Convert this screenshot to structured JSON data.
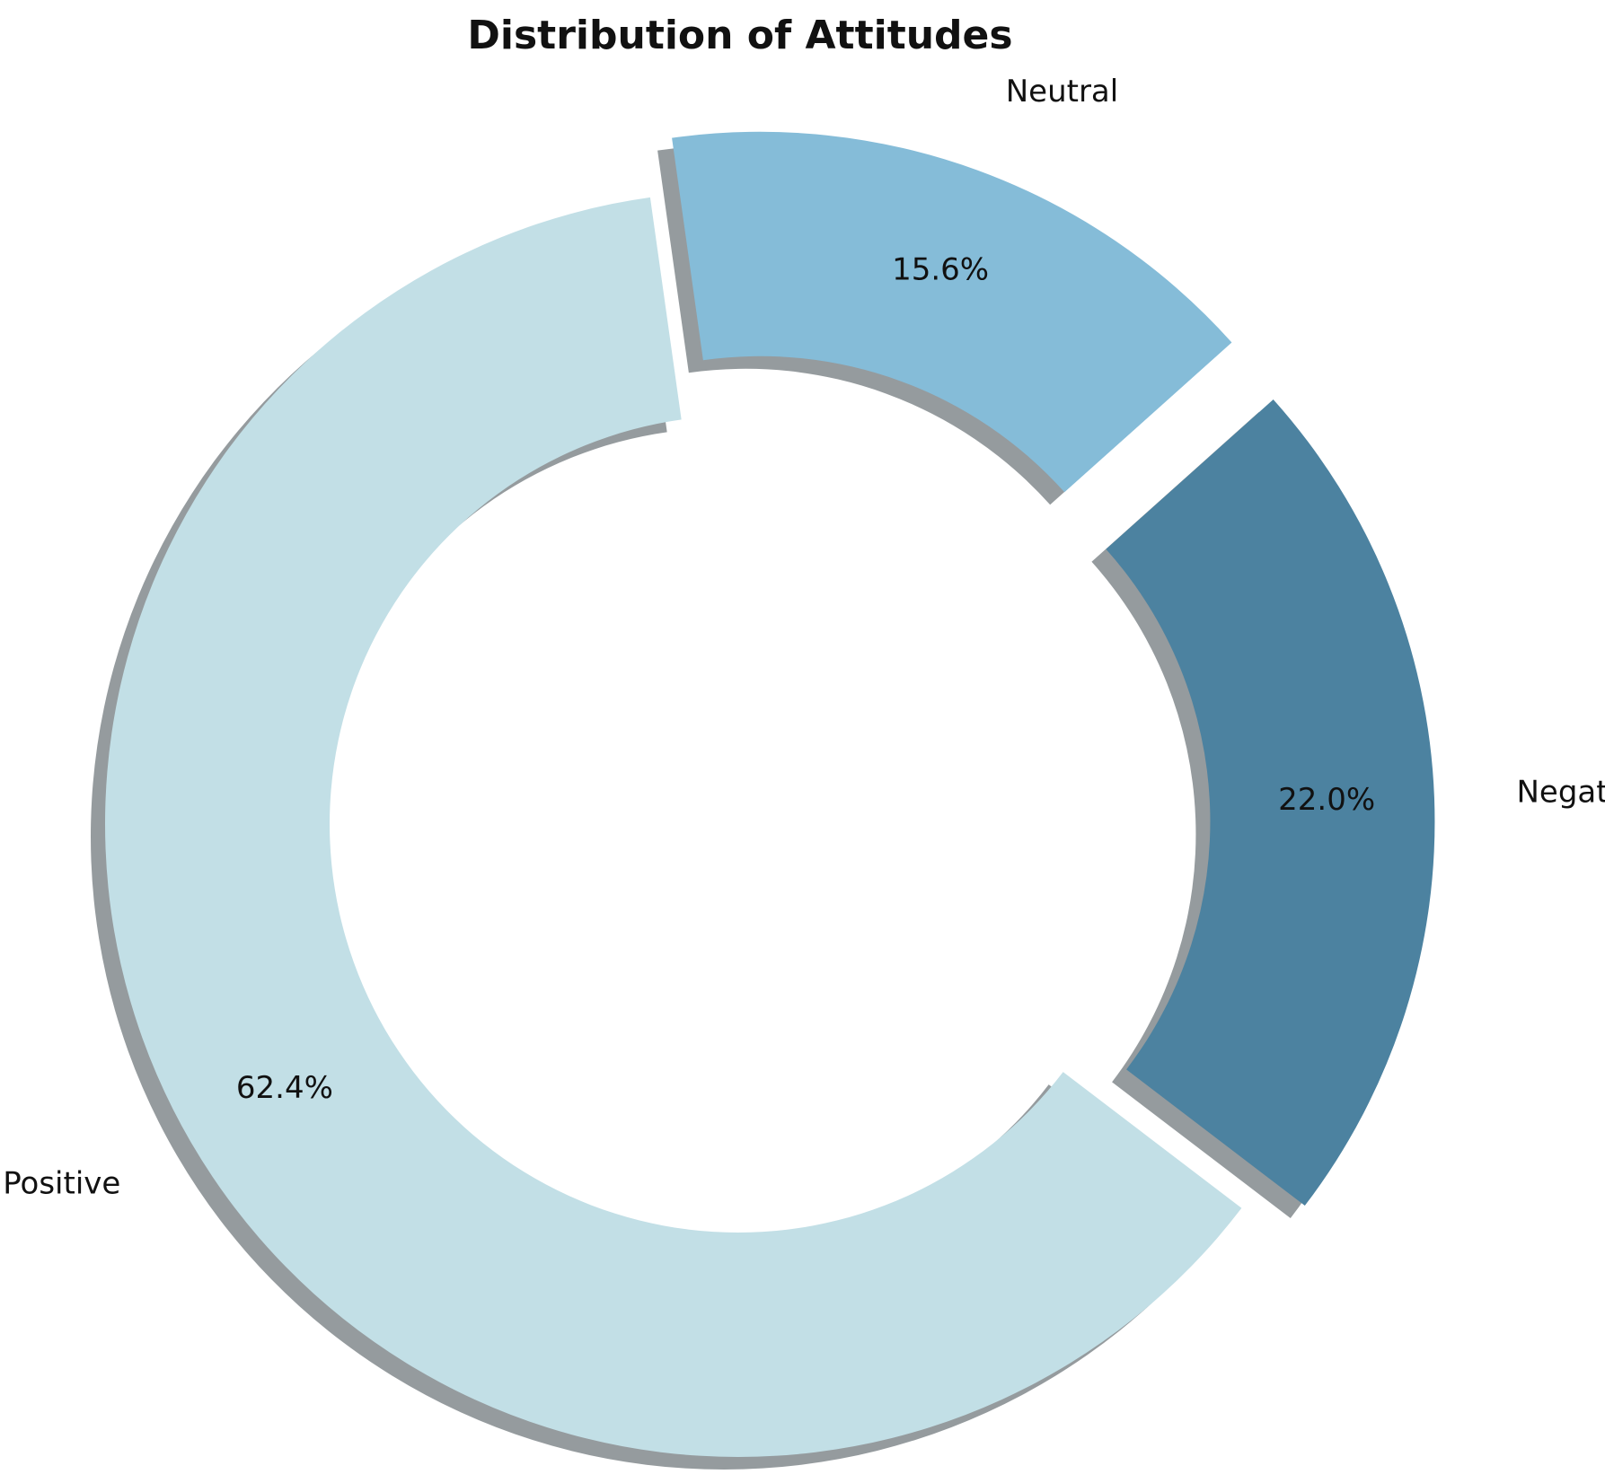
{
  "chart_data": {
    "type": "donut",
    "title": "Distribution of Attitudes",
    "categories": [
      "Positive",
      "Negative",
      "Neutral"
    ],
    "values": [
      62.4,
      22.0,
      15.6
    ],
    "value_labels": [
      "62.4%",
      "22.0%",
      "15.6%"
    ],
    "colors": [
      "#c2dfe6",
      "#4c82a0",
      "#85bcd8"
    ]
  }
}
